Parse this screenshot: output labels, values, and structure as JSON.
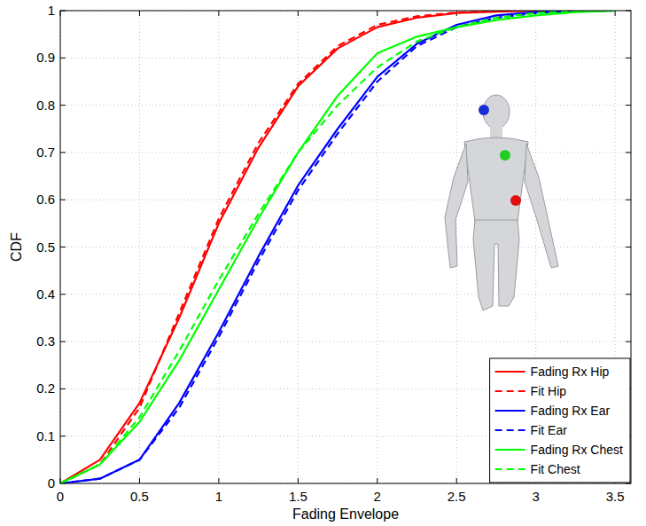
{
  "chart_data": {
    "type": "line",
    "x_label": "Fading Envelope",
    "y_label": "CDF",
    "xlim": [
      0,
      3.6
    ],
    "ylim": [
      0,
      1
    ],
    "xticks": [
      0,
      0.5,
      1,
      1.5,
      2,
      2.5,
      3,
      3.5
    ],
    "yticks": [
      0,
      0.1,
      0.2,
      0.3,
      0.4,
      0.5,
      0.6,
      0.7,
      0.8,
      0.9,
      1
    ],
    "grid": true,
    "legend": "bottom-right",
    "x": [
      0,
      0.25,
      0.5,
      0.75,
      1,
      1.25,
      1.5,
      1.75,
      2,
      2.25,
      2.5,
      2.75,
      3,
      3.25,
      3.5
    ],
    "series": [
      {
        "name": "Fading Rx Hip",
        "color": "#ff0000",
        "line_style": "solid",
        "values": [
          0,
          0.05,
          0.17,
          0.35,
          0.55,
          0.71,
          0.84,
          0.92,
          0.965,
          0.985,
          0.995,
          0.998,
          1,
          1,
          1
        ]
      },
      {
        "name": "Fit Hip",
        "color": "#ff0000",
        "line_style": "dashed",
        "values": [
          0,
          0.04,
          0.16,
          0.36,
          0.56,
          0.72,
          0.845,
          0.925,
          0.97,
          0.988,
          0.996,
          0.999,
          1,
          1,
          1
        ]
      },
      {
        "name": "Fading Rx Ear",
        "color": "#0000ff",
        "line_style": "solid",
        "values": [
          0,
          0.01,
          0.05,
          0.17,
          0.32,
          0.48,
          0.63,
          0.75,
          0.86,
          0.93,
          0.97,
          0.99,
          0.997,
          0.999,
          1
        ]
      },
      {
        "name": "Fit Ear",
        "color": "#0000ff",
        "line_style": "dashed",
        "values": [
          0,
          0.01,
          0.05,
          0.16,
          0.31,
          0.47,
          0.62,
          0.74,
          0.85,
          0.925,
          0.965,
          0.985,
          0.995,
          0.999,
          1
        ]
      },
      {
        "name": "Fading Rx Chest",
        "color": "#00ff00",
        "line_style": "solid",
        "values": [
          0,
          0.04,
          0.13,
          0.26,
          0.41,
          0.56,
          0.7,
          0.82,
          0.91,
          0.945,
          0.965,
          0.98,
          0.99,
          0.997,
          1
        ]
      },
      {
        "name": "Fit Chest",
        "color": "#00ff00",
        "line_style": "dashed",
        "values": [
          0,
          0.04,
          0.14,
          0.28,
          0.43,
          0.57,
          0.7,
          0.8,
          0.88,
          0.935,
          0.965,
          0.985,
          0.995,
          0.999,
          1
        ]
      }
    ]
  }
}
